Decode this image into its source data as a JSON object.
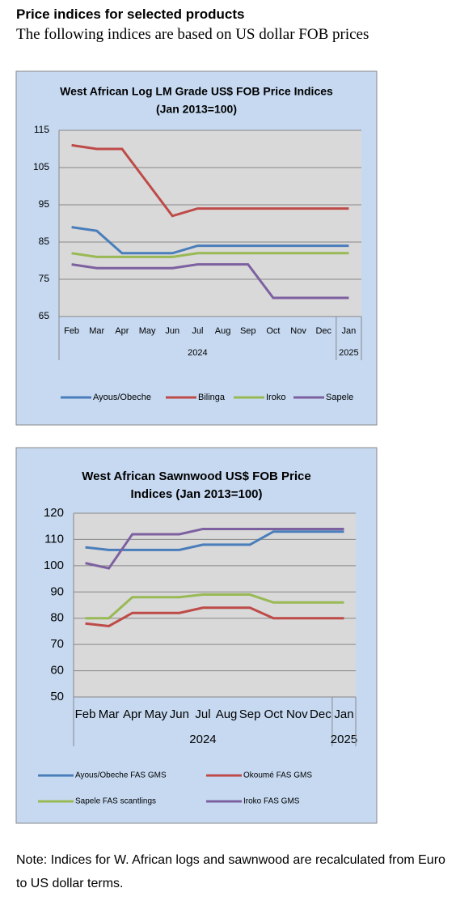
{
  "header": {
    "title": "Price indices for selected products",
    "subtitle": "The following indices are based on US dollar FOB prices"
  },
  "chart_data": [
    {
      "type": "line",
      "title": "West African Log LM Grade US$ FOB Price Indices",
      "subtitle": "(Jan 2013=100)",
      "categories": [
        "Feb",
        "Mar",
        "Apr",
        "May",
        "Jun",
        "Jul",
        "Aug",
        "Sep",
        "Oct",
        "Nov",
        "Dec",
        "Jan"
      ],
      "groups": [
        {
          "name": "2024",
          "size": 11
        },
        {
          "name": "2025",
          "size": 1
        }
      ],
      "ylim": [
        65,
        115
      ],
      "yticks": [
        65,
        75,
        85,
        95,
        105,
        115
      ],
      "grid": true,
      "legend": "bottom",
      "series": [
        {
          "name": "Ayous/Obeche",
          "color": "#4a7ebb",
          "values": [
            89,
            88,
            82,
            82,
            82,
            84,
            84,
            84,
            84,
            84,
            84,
            84
          ]
        },
        {
          "name": "Bilinga",
          "color": "#be4b48",
          "values": [
            111,
            110,
            110,
            101,
            92,
            94,
            94,
            94,
            94,
            94,
            94,
            94
          ]
        },
        {
          "name": "Iroko",
          "color": "#98b954",
          "values": [
            82,
            81,
            81,
            81,
            81,
            82,
            82,
            82,
            82,
            82,
            82,
            82
          ]
        },
        {
          "name": "Sapele",
          "color": "#7d60a0",
          "values": [
            79,
            78,
            78,
            78,
            78,
            79,
            79,
            79,
            70,
            70,
            70,
            70
          ]
        }
      ]
    },
    {
      "type": "line",
      "title": "West African Sawnwood US$ FOB Price",
      "subtitle": "Indices (Jan 2013=100)",
      "categories": [
        "Feb",
        "Mar",
        "Apr",
        "May",
        "Jun",
        "Jul",
        "Aug",
        "Sep",
        "Oct",
        "Nov",
        "Dec",
        "Jan"
      ],
      "groups": [
        {
          "name": "2024",
          "size": 11
        },
        {
          "name": "2025",
          "size": 1
        }
      ],
      "ylim": [
        50,
        120
      ],
      "yticks": [
        50,
        60,
        70,
        80,
        90,
        100,
        110,
        120
      ],
      "grid": true,
      "legend": "bottom",
      "series": [
        {
          "name": "Ayous/Obeche  FAS GMS",
          "color": "#4a7ebb",
          "values": [
            107,
            106,
            106,
            106,
            106,
            108,
            108,
            108,
            113,
            113,
            113,
            113
          ]
        },
        {
          "name": "Okoumé  FAS GMS",
          "color": "#be4b48",
          "values": [
            78,
            77,
            82,
            82,
            82,
            84,
            84,
            84,
            80,
            80,
            80,
            80
          ]
        },
        {
          "name": "Sapele FAS scantlings",
          "color": "#98b954",
          "values": [
            80,
            80,
            88,
            88,
            88,
            89,
            89,
            89,
            86,
            86,
            86,
            86
          ]
        },
        {
          "name": "Iroko FAS GMS",
          "color": "#7d60a0",
          "values": [
            101,
            99,
            112,
            112,
            112,
            114,
            114,
            114,
            114,
            114,
            114,
            114
          ]
        }
      ]
    }
  ],
  "note": "Note: Indices for W. African logs and sawnwood are recalculated from Euro to US dollar terms."
}
